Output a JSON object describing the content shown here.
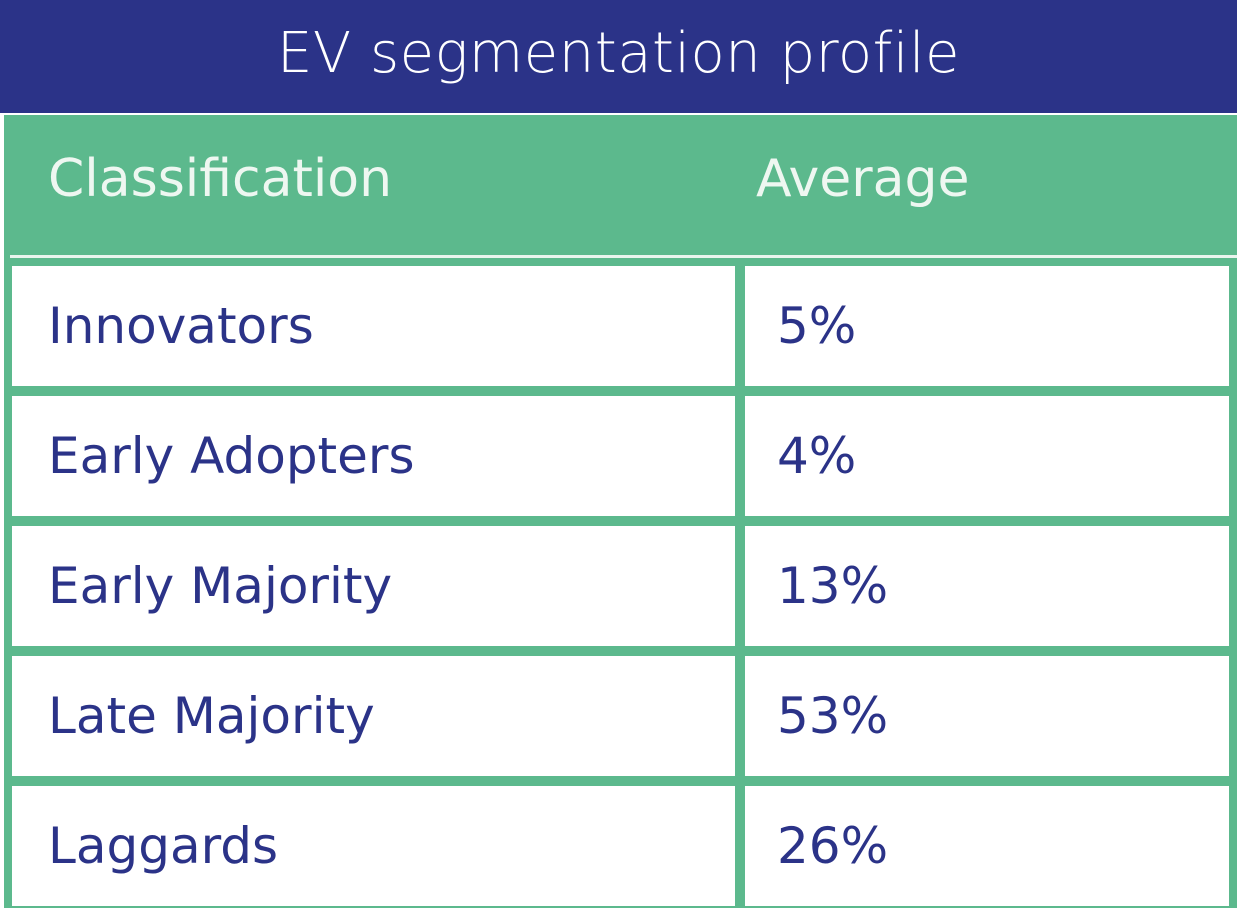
{
  "title": "EV segmentation profile",
  "chart_data": {
    "type": "table",
    "columns": [
      "Classification",
      "Average"
    ],
    "rows": [
      {
        "classification": "Innovators",
        "average": "5%"
      },
      {
        "classification": "Early Adopters",
        "average": "4%"
      },
      {
        "classification": "Early Majority",
        "average": "13%"
      },
      {
        "classification": "Late Majority",
        "average": "53%"
      },
      {
        "classification": "Laggards",
        "average": "26%"
      }
    ]
  },
  "colors": {
    "title_bar": "#2b3388",
    "header": "#5cb98d",
    "text": "#2b3388"
  }
}
